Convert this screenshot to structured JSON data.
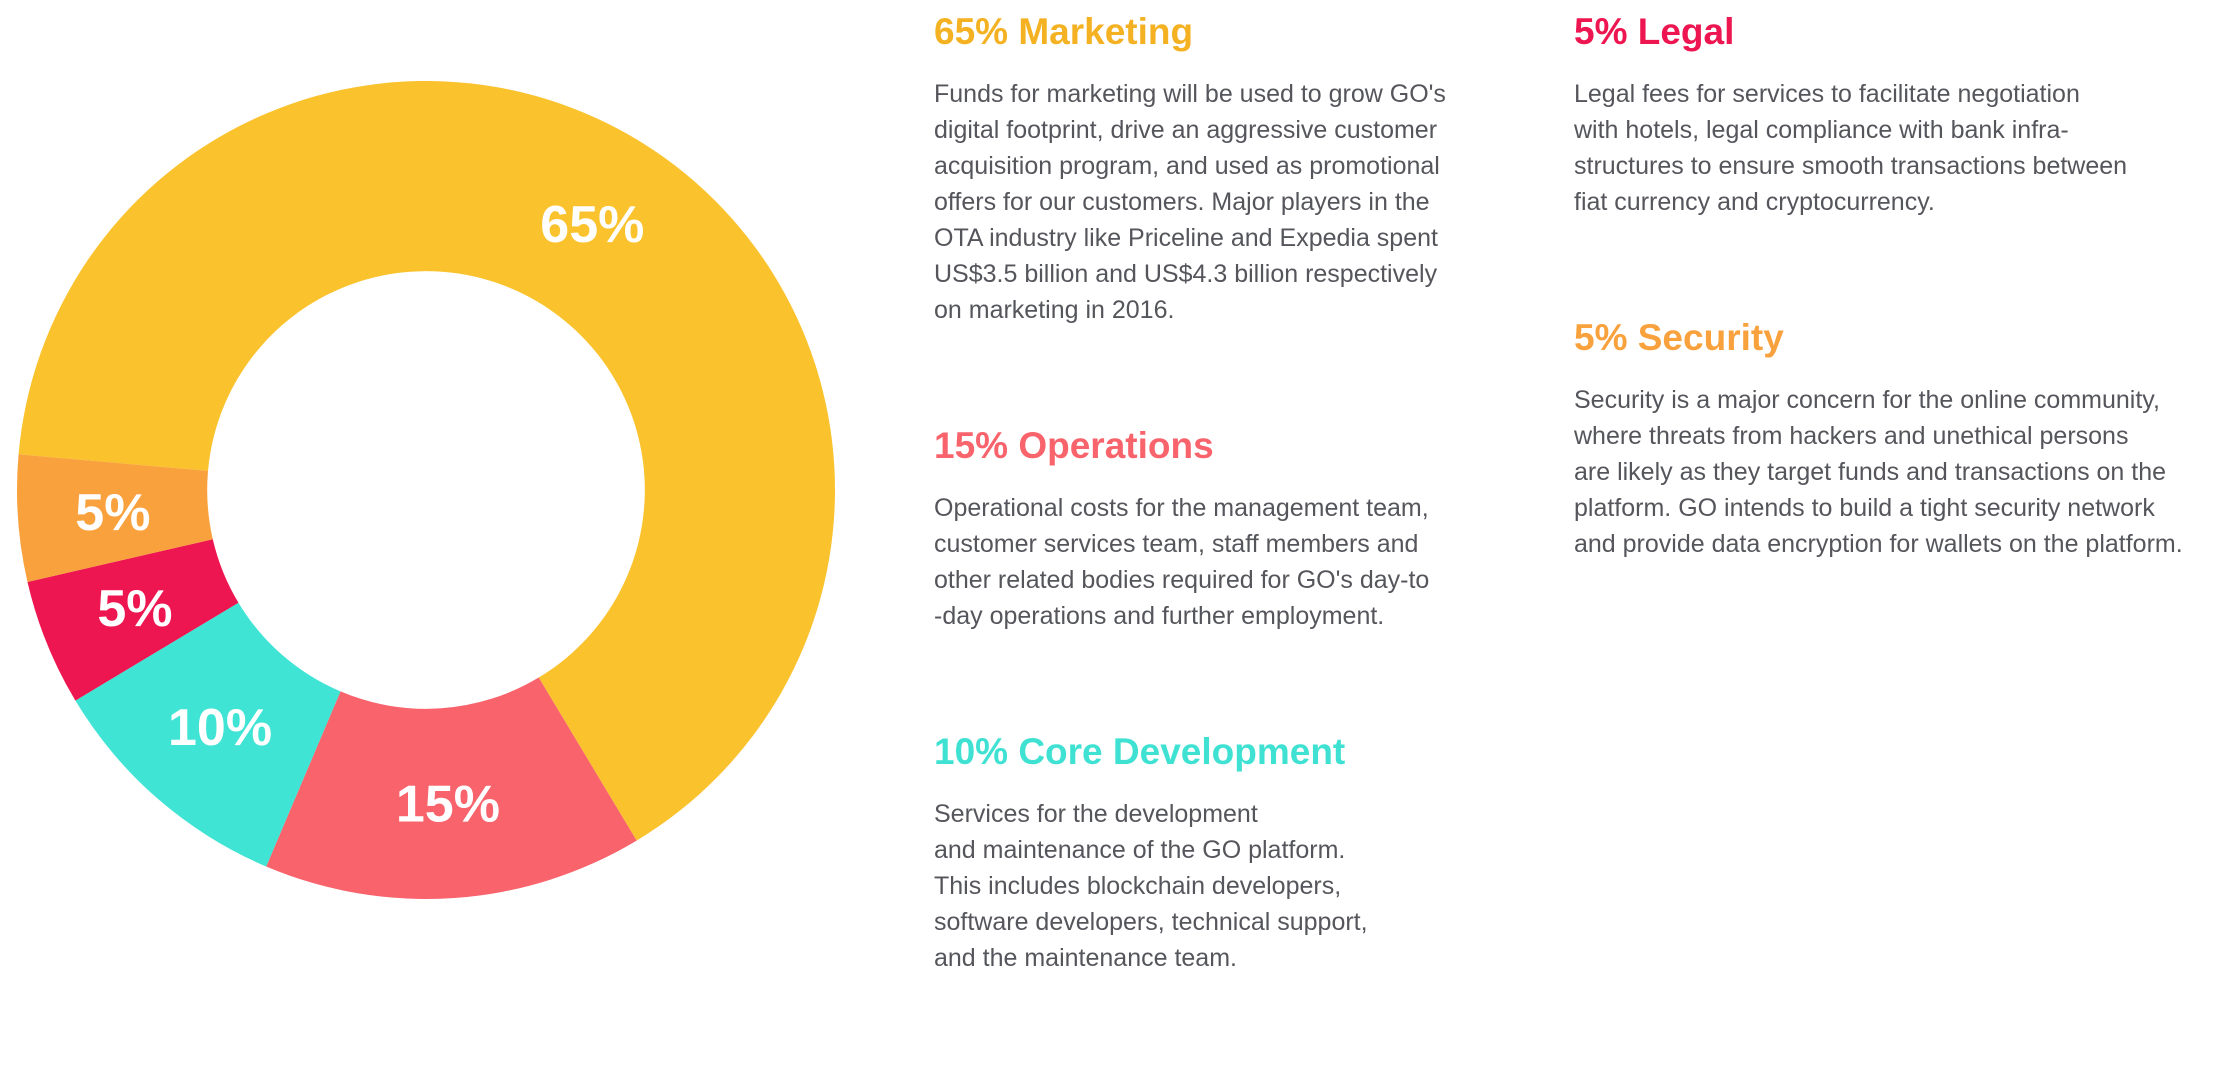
{
  "page": {
    "background": "#ffffff",
    "text_color": "#55565c"
  },
  "chart_data": {
    "type": "pie",
    "variant": "donut",
    "title": "",
    "legend": "none (labels inside slices, descriptions at right)",
    "start_angle_deg_clockwise_from_top": 275,
    "inner_radius_ratio": 0.535,
    "hole_color": "#ffffff",
    "label_color": "#ffffff",
    "slices": [
      {
        "label": "Marketing",
        "value": 65,
        "display": "65%",
        "color": "#FAC22D"
      },
      {
        "label": "Operations",
        "value": 15,
        "display": "15%",
        "color": "#F8636C"
      },
      {
        "label": "Core Development",
        "value": 10,
        "display": "10%",
        "color": "#3FE4D5"
      },
      {
        "label": "Legal",
        "value": 5,
        "display": "5%",
        "color": "#ED1650"
      },
      {
        "label": "Security",
        "value": 5,
        "display": "5%",
        "color": "#F9A13C"
      }
    ]
  },
  "sections": {
    "col1": [
      {
        "id": "marketing",
        "heading": "65% Marketing",
        "color": "#F4B223",
        "body": "Funds for marketing will be used to grow GO's\ndigital footprint, drive an aggressive customer\nacquisition program, and used as promotional\noffers for our customers. Major players in the\nOTA industry like Priceline and Expedia spent\nUS$3.5 billion and US$4.3 billion respectively\non marketing in 2016."
      },
      {
        "id": "operations",
        "heading": "15% Operations",
        "color": "#F8636C",
        "body": "Operational costs for the management team,\ncustomer services team, staff members and\nother related bodies required for GO's day-to\n-day operations and further employment."
      },
      {
        "id": "core-development",
        "heading": "10% Core Development",
        "color": "#3FE2D2",
        "body": "Services for the development\nand maintenance of the GO platform.\nThis includes blockchain developers,\nsoftware developers, technical support,\nand the maintenance team."
      }
    ],
    "col2": [
      {
        "id": "legal",
        "heading": "5% Legal",
        "color": "#ED1650",
        "body": "Legal fees for services to facilitate negotiation\nwith hotels, legal compliance with bank infra-\nstructures to ensure smooth transactions between\nfiat currency and cryptocurrency."
      },
      {
        "id": "security",
        "heading": "5% Security",
        "color": "#F9A13C",
        "body": "Security is a major concern for the online community,\nwhere threats from hackers and unethical persons\nare likely as they target funds and transactions on the\nplatform. GO intends to build a tight security network\nand provide data encryption for wallets on the platform."
      }
    ]
  }
}
